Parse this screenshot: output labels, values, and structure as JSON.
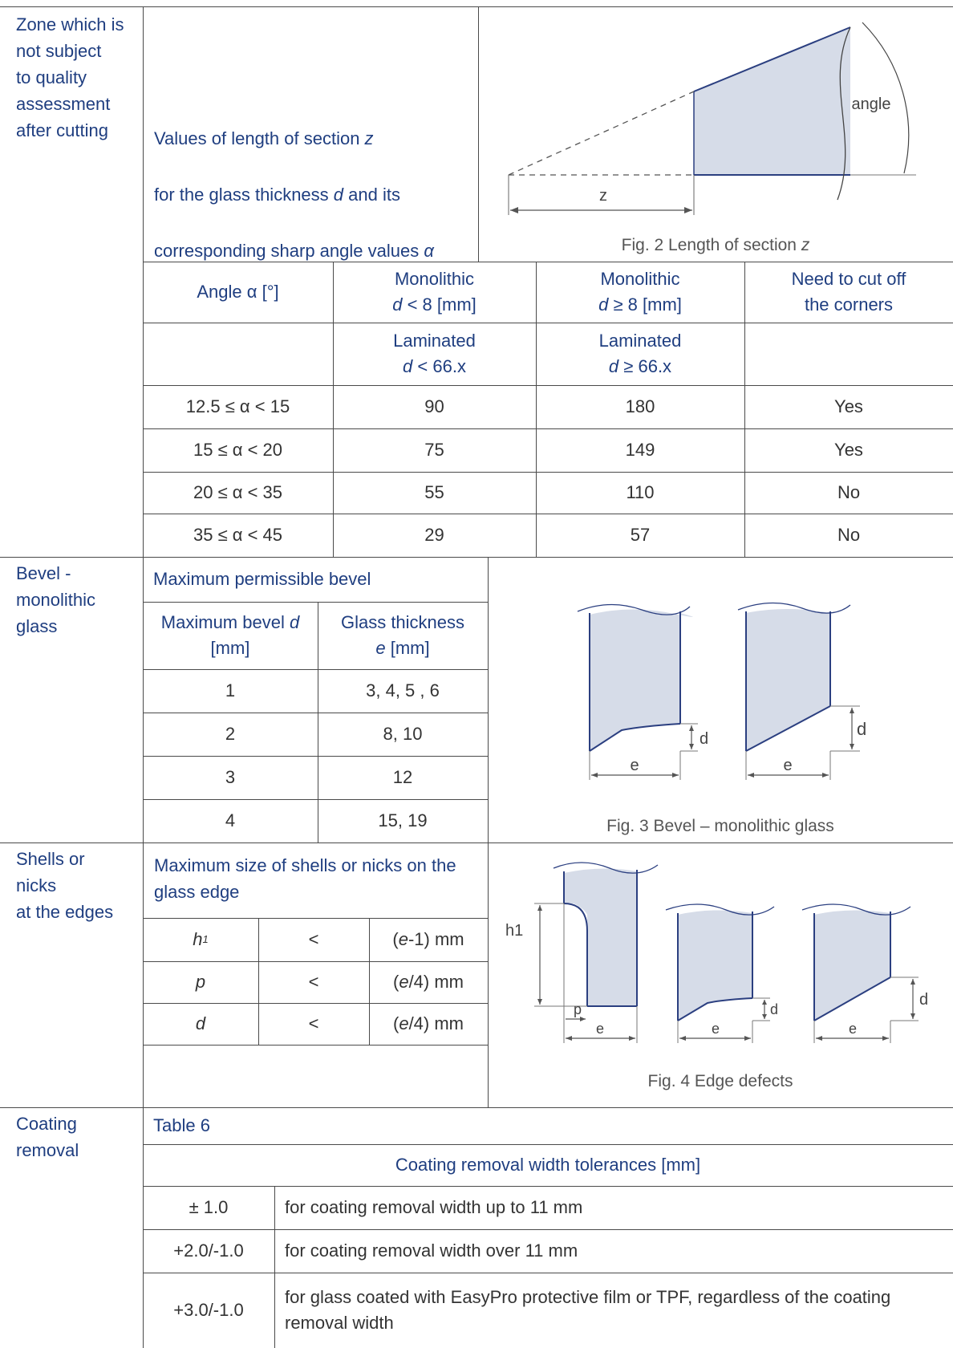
{
  "colors": {
    "label_blue": "#1f3e80",
    "glass_fill": "#d6dce8",
    "glass_stroke": "#2b3f80",
    "rule": "#4a4a4a"
  },
  "zone_section": {
    "label": "Zone which is\nnot subject\nto quality\nassessment\nafter cutting",
    "desc_line1": "Values of length of section ",
    "desc_z": "z",
    "desc_line2a": "for the glass thickness ",
    "desc_d": "d",
    "desc_line2b": " and its",
    "desc_line3": "corresponding sharp angle values ",
    "desc_alpha": "α",
    "figure": {
      "angle_label": "angle",
      "z_label": "z"
    },
    "caption": "Fig. 2 Length of section ",
    "caption_z": "z",
    "headers": {
      "angle": "Angle α [°]",
      "mono_lt_1": "Monolithic",
      "mono_lt_d": "d",
      "mono_lt_2": " < 8 [mm]",
      "mono_ge_1": "Monolithic",
      "mono_ge_d": "d",
      "mono_ge_2": " ≥ 8 [mm]",
      "cut_corners": "Need to cut off\nthe corners",
      "lam_lt_1": "Laminated",
      "lam_lt_d": "d",
      "lam_lt_2": " < 66.x",
      "lam_ge_1": "Laminated",
      "lam_ge_d": "d",
      "lam_ge_2": " ≥ 66.x"
    },
    "rows": [
      {
        "angle": "12.5 ≤ α < 15",
        "lt": "90",
        "ge": "180",
        "cut": "Yes"
      },
      {
        "angle": "15 ≤ α < 20",
        "lt": "75",
        "ge": "149",
        "cut": "Yes"
      },
      {
        "angle": "20 ≤ α < 35",
        "lt": "55",
        "ge": "110",
        "cut": "No"
      },
      {
        "angle": "35 ≤ α < 45",
        "lt": "29",
        "ge": "57",
        "cut": "No"
      }
    ]
  },
  "bevel_section": {
    "label": "Bevel -\nmonolithic\nglass",
    "table_title": "Maximum permissible bevel",
    "col1_a": "Maximum bevel ",
    "col1_d": "d",
    "col1_b": "[mm]",
    "col2_a": "Glass thickness",
    "col2_e": "e",
    "col2_b": " [mm]",
    "rows": [
      {
        "bevel": "1",
        "thickness": "3, 4, 5 , 6"
      },
      {
        "bevel": "2",
        "thickness": "8, 10"
      },
      {
        "bevel": "3",
        "thickness": "12"
      },
      {
        "bevel": "4",
        "thickness": "15, 19"
      }
    ],
    "figure": {
      "d_label": "d",
      "e_label": "e"
    },
    "caption": "Fig. 3 Bevel – monolithic glass"
  },
  "shells_section": {
    "label": "Shells or\nnicks\n at the edges",
    "table_title": "Maximum size of shells or nicks on the\nglass edge",
    "rows": [
      {
        "sym": "h",
        "sub": "1",
        "op": "<",
        "val_a": "(",
        "val_e": "e",
        "val_b": "-1) mm"
      },
      {
        "sym": "p",
        "sub": "",
        "op": "<",
        "val_a": "(",
        "val_e": "e",
        "val_b": "/4) mm"
      },
      {
        "sym": "d",
        "sub": "",
        "op": "<",
        "val_a": "(",
        "val_e": "e",
        "val_b": "/4) mm"
      }
    ],
    "figure": {
      "h1_label": "h1",
      "p_label": "p",
      "d_label": "d",
      "e_label": "e"
    },
    "caption": "Fig. 4 Edge defects"
  },
  "coating_section": {
    "label": "Coating\nremoval",
    "table_title": "Table 6",
    "subheader": "Coating removal width tolerances [mm]",
    "rows": [
      {
        "tol": "± 1.0",
        "desc": "for coating removal width up to 11 mm"
      },
      {
        "tol": "+2.0/-1.0",
        "desc": "for coating removal width over 11 mm"
      },
      {
        "tol": "+3.0/-1.0",
        "desc": "for glass coated with EasyPro protective film or TPF, regardless of the coating\nremoval width"
      }
    ]
  }
}
